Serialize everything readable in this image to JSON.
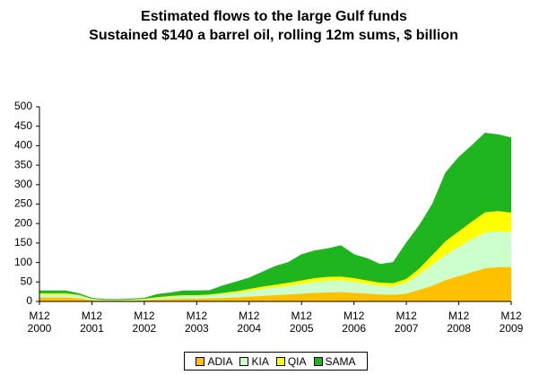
{
  "chart_data": {
    "type": "stacked-area",
    "title": "Estimated flows to the large Gulf funds",
    "subtitle": "Sustained $140 a barrel oil, rolling 12m sums, $ billion",
    "categories": [
      "M12 2000",
      null,
      null,
      null,
      "M12 2001",
      null,
      null,
      null,
      "M12 2002",
      null,
      null,
      null,
      "M12 2003",
      null,
      null,
      null,
      "M12 2004",
      null,
      null,
      null,
      "M12 2005",
      null,
      null,
      null,
      "M12 2006",
      null,
      null,
      null,
      "M12 2007",
      null,
      null,
      null,
      "M12 2008",
      null,
      null,
      null,
      "M12 2009"
    ],
    "series": [
      {
        "name": "ADIA",
        "color": "#ffc000",
        "values": [
          10,
          10,
          10,
          8,
          3,
          2,
          2,
          2,
          3,
          5,
          6,
          7,
          7,
          8,
          9,
          10,
          12,
          14,
          16,
          18,
          20,
          22,
          23,
          24,
          22,
          20,
          18,
          17,
          20,
          30,
          40,
          55,
          65,
          75,
          85,
          88,
          88
        ]
      },
      {
        "name": "KIA",
        "color": "#ccffcc",
        "values": [
          8,
          8,
          8,
          7,
          3,
          2,
          2,
          2,
          3,
          4,
          6,
          7,
          7,
          8,
          10,
          12,
          15,
          18,
          20,
          22,
          25,
          28,
          30,
          30,
          28,
          25,
          22,
          22,
          28,
          40,
          55,
          65,
          75,
          85,
          92,
          92,
          90
        ]
      },
      {
        "name": "QIA",
        "color": "#ffff00",
        "values": [
          3,
          3,
          3,
          2,
          1,
          1,
          1,
          1,
          1,
          2,
          2,
          2,
          2,
          2,
          3,
          4,
          5,
          6,
          7,
          8,
          9,
          10,
          10,
          10,
          10,
          9,
          8,
          8,
          10,
          15,
          25,
          35,
          40,
          45,
          52,
          52,
          50
        ]
      },
      {
        "name": "SAMA",
        "color": "#1fb51f",
        "values": [
          6,
          6,
          6,
          3,
          1,
          0,
          0,
          1,
          1,
          7,
          8,
          11,
          11,
          10,
          18,
          24,
          28,
          37,
          47,
          52,
          66,
          70,
          72,
          79,
          60,
          56,
          47,
          53,
          92,
          110,
          130,
          175,
          190,
          195,
          203,
          196,
          192
        ]
      }
    ],
    "ylim": [
      0,
      500
    ],
    "yticks": [
      0,
      50,
      100,
      150,
      200,
      250,
      300,
      350,
      400,
      450,
      500
    ],
    "grid": false,
    "legend": "bottom"
  }
}
